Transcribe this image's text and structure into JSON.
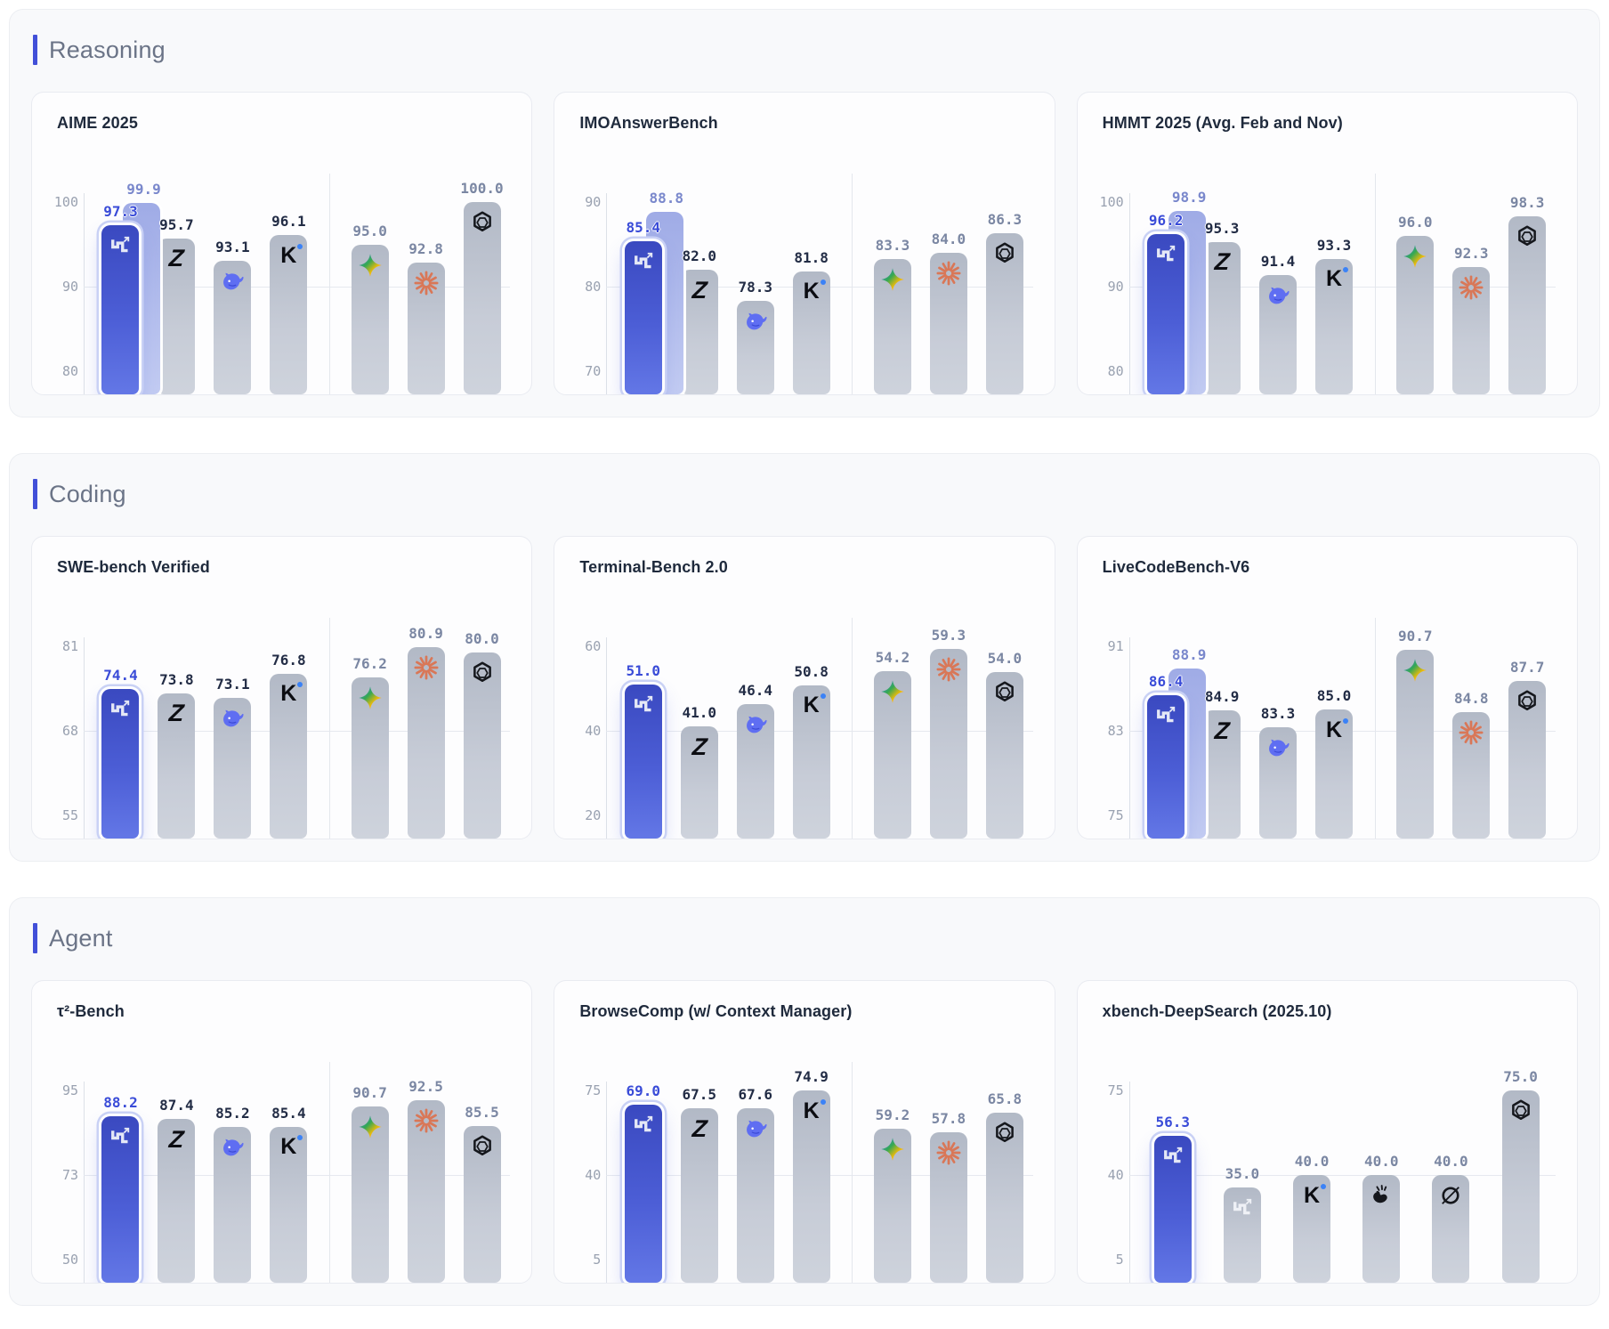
{
  "colors": {
    "accent": "#4250d8",
    "featured_bar_top": "#3a49c0",
    "featured_bar_bottom": "#6377e6",
    "secondary_bar": "#a9b4ea",
    "gray_bar_top": "#b2b9c6",
    "gray_bar_bottom": "#ced3dc",
    "featured_value_text": "#3a4cd8",
    "secondary_value_text": "#7a88cc",
    "dark_value_text": "#222c45",
    "muted_value_text": "#7b87a3",
    "tick_text": "#99a1b0",
    "section_label_text": "#6b7487",
    "chart_title_text": "#1f2a3c"
  },
  "icons": {
    "minimax": "stairs-with-arrow",
    "zai": "letter-z",
    "deepseek": "whale",
    "kimi": "letter-k-with-blue-dot",
    "gemini": "four-point-gradient-star",
    "claude": "orange-starburst",
    "openai": "hexagonal-knot",
    "hand": "snapping-hand",
    "grok": "circle-with-slash"
  },
  "sections": [
    {
      "label": "Reasoning"
    },
    {
      "label": "Coding"
    },
    {
      "label": "Agent"
    }
  ],
  "chart_data": [
    {
      "type": "bar",
      "section": "Reasoning",
      "title": "AIME 2025",
      "yticks": [
        100,
        90,
        80
      ],
      "ylim": [
        80,
        100
      ],
      "grid": "middle-tick-line",
      "separator_after_index": 3,
      "bars": [
        {
          "icon": "minimax",
          "featured": true,
          "value": 97.3,
          "value2": 99.9
        },
        {
          "icon": "zai",
          "value": 95.7,
          "tone": "dark"
        },
        {
          "icon": "deepseek",
          "value": 93.1,
          "tone": "dark"
        },
        {
          "icon": "kimi",
          "value": 96.1,
          "tone": "dark"
        },
        {
          "icon": "gemini",
          "value": 95.0,
          "tone": "muted"
        },
        {
          "icon": "claude",
          "value": 92.8,
          "tone": "muted"
        },
        {
          "icon": "openai",
          "value": 100.0,
          "tone": "muted"
        }
      ]
    },
    {
      "type": "bar",
      "section": "Reasoning",
      "title": "IMOAnswerBench",
      "yticks": [
        90,
        80,
        70
      ],
      "ylim": [
        70,
        90
      ],
      "grid": "middle-tick-line",
      "separator_after_index": 3,
      "bars": [
        {
          "icon": "minimax",
          "featured": true,
          "value": 85.4,
          "value2": 88.8
        },
        {
          "icon": "zai",
          "value": 82.0,
          "tone": "dark"
        },
        {
          "icon": "deepseek",
          "value": 78.3,
          "tone": "dark"
        },
        {
          "icon": "kimi",
          "value": 81.8,
          "tone": "dark"
        },
        {
          "icon": "gemini",
          "value": 83.3,
          "tone": "muted"
        },
        {
          "icon": "claude",
          "value": 84.0,
          "tone": "muted"
        },
        {
          "icon": "openai",
          "value": 86.3,
          "tone": "muted"
        }
      ]
    },
    {
      "type": "bar",
      "section": "Reasoning",
      "title": "HMMT 2025 (Avg. Feb and Nov)",
      "yticks": [
        100,
        90,
        80
      ],
      "ylim": [
        80,
        100
      ],
      "grid": "middle-tick-line",
      "separator_after_index": 3,
      "bars": [
        {
          "icon": "minimax",
          "featured": true,
          "value": 96.2,
          "value2": 98.9
        },
        {
          "icon": "zai",
          "value": 95.3,
          "tone": "dark"
        },
        {
          "icon": "deepseek",
          "value": 91.4,
          "tone": "dark"
        },
        {
          "icon": "kimi",
          "value": 93.3,
          "tone": "dark"
        },
        {
          "icon": "gemini",
          "value": 96.0,
          "tone": "muted"
        },
        {
          "icon": "claude",
          "value": 92.3,
          "tone": "muted"
        },
        {
          "icon": "openai",
          "value": 98.3,
          "tone": "muted"
        }
      ]
    },
    {
      "type": "bar",
      "section": "Coding",
      "title": "SWE-bench Verified",
      "yticks": [
        81,
        68,
        55
      ],
      "ylim": [
        55,
        81
      ],
      "grid": "middle-tick-line",
      "separator_after_index": 3,
      "bars": [
        {
          "icon": "minimax",
          "featured": true,
          "value": 74.4
        },
        {
          "icon": "zai",
          "value": 73.8,
          "tone": "dark"
        },
        {
          "icon": "deepseek",
          "value": 73.1,
          "tone": "dark"
        },
        {
          "icon": "kimi",
          "value": 76.8,
          "tone": "dark"
        },
        {
          "icon": "gemini",
          "value": 76.2,
          "tone": "muted"
        },
        {
          "icon": "claude",
          "value": 80.9,
          "tone": "muted"
        },
        {
          "icon": "openai",
          "value": 80.0,
          "tone": "muted"
        }
      ]
    },
    {
      "type": "bar",
      "section": "Coding",
      "title": "Terminal-Bench 2.0",
      "yticks": [
        60,
        40,
        20
      ],
      "ylim": [
        20,
        60
      ],
      "grid": "middle-tick-line",
      "separator_after_index": 3,
      "bars": [
        {
          "icon": "minimax",
          "featured": true,
          "value": 51.0
        },
        {
          "icon": "zai",
          "value": 41.0,
          "tone": "dark"
        },
        {
          "icon": "deepseek",
          "value": 46.4,
          "tone": "dark"
        },
        {
          "icon": "kimi",
          "value": 50.8,
          "tone": "dark"
        },
        {
          "icon": "gemini",
          "value": 54.2,
          "tone": "muted"
        },
        {
          "icon": "claude",
          "value": 59.3,
          "tone": "muted"
        },
        {
          "icon": "openai",
          "value": 54.0,
          "tone": "muted"
        }
      ]
    },
    {
      "type": "bar",
      "section": "Coding",
      "title": "LiveCodeBench-V6",
      "yticks": [
        91,
        83,
        75
      ],
      "ylim": [
        75,
        91
      ],
      "grid": "middle-tick-line",
      "separator_after_index": 3,
      "bars": [
        {
          "icon": "minimax",
          "featured": true,
          "value": 86.4,
          "value2": 88.9
        },
        {
          "icon": "zai",
          "value": 84.9,
          "tone": "dark"
        },
        {
          "icon": "deepseek",
          "value": 83.3,
          "tone": "dark"
        },
        {
          "icon": "kimi",
          "value": 85.0,
          "tone": "dark"
        },
        {
          "icon": "gemini",
          "value": 90.7,
          "tone": "muted"
        },
        {
          "icon": "claude",
          "value": 84.8,
          "tone": "muted"
        },
        {
          "icon": "openai",
          "value": 87.7,
          "tone": "muted"
        }
      ]
    },
    {
      "type": "bar",
      "section": "Agent",
      "title": "τ²-Bench",
      "yticks": [
        95,
        73,
        50
      ],
      "ylim": [
        50,
        95
      ],
      "grid": "middle-tick-line",
      "separator_after_index": 3,
      "bars": [
        {
          "icon": "minimax",
          "featured": true,
          "value": 88.2
        },
        {
          "icon": "zai",
          "value": 87.4,
          "tone": "dark"
        },
        {
          "icon": "deepseek",
          "value": 85.2,
          "tone": "dark"
        },
        {
          "icon": "kimi",
          "value": 85.4,
          "tone": "dark"
        },
        {
          "icon": "gemini",
          "value": 90.7,
          "tone": "muted"
        },
        {
          "icon": "claude",
          "value": 92.5,
          "tone": "muted"
        },
        {
          "icon": "openai",
          "value": 85.5,
          "tone": "muted"
        }
      ]
    },
    {
      "type": "bar",
      "section": "Agent",
      "title": "BrowseComp (w/ Context Manager)",
      "yticks": [
        75,
        40,
        5
      ],
      "ylim": [
        5,
        75
      ],
      "grid": "middle-tick-line",
      "separator_after_index": 3,
      "bars": [
        {
          "icon": "minimax",
          "featured": true,
          "value": 69.0
        },
        {
          "icon": "zai",
          "value": 67.5,
          "tone": "dark"
        },
        {
          "icon": "deepseek",
          "value": 67.6,
          "tone": "dark"
        },
        {
          "icon": "kimi",
          "value": 74.9,
          "tone": "dark"
        },
        {
          "icon": "gemini",
          "value": 59.2,
          "tone": "muted"
        },
        {
          "icon": "claude",
          "value": 57.8,
          "tone": "muted"
        },
        {
          "icon": "openai",
          "value": 65.8,
          "tone": "muted"
        }
      ]
    },
    {
      "type": "bar",
      "section": "Agent",
      "title": "xbench-DeepSearch (2025.10)",
      "yticks": [
        75,
        40,
        5
      ],
      "ylim": [
        5,
        75
      ],
      "grid": "middle-tick-line",
      "separator_after_index": null,
      "bars": [
        {
          "icon": "minimax",
          "featured": true,
          "value": 56.3
        },
        {
          "icon": "minimax",
          "value": 35.0,
          "tone": "muted",
          "icon_tone": "light"
        },
        {
          "icon": "kimi",
          "value": 40.0,
          "tone": "muted"
        },
        {
          "icon": "hand",
          "value": 40.0,
          "tone": "muted"
        },
        {
          "icon": "grok",
          "value": 40.0,
          "tone": "muted"
        },
        {
          "icon": "openai",
          "value": 75.0,
          "tone": "muted"
        }
      ]
    }
  ]
}
